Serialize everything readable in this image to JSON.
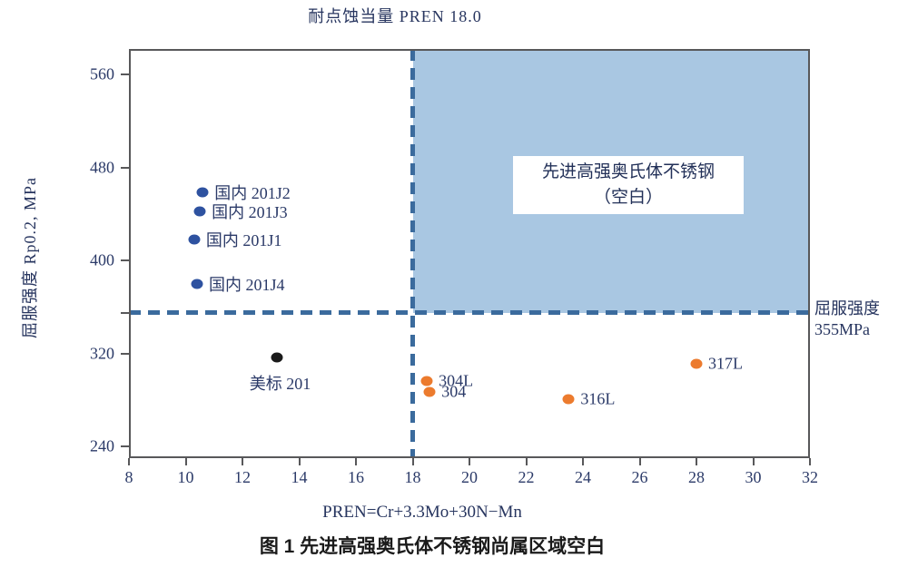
{
  "figure": {
    "top_title": "耐点蚀当量 PREN 18.0",
    "y_axis_title": "屈服强度 Rp0.2, MPa",
    "x_axis_title": "PREN=Cr+3.3Mo+30N−Mn",
    "caption": "图 1 先进高强奥氏体不锈钢尚属区域空白",
    "right_annotation": {
      "line1": "屈服强度",
      "line2": "355MPa"
    },
    "blank_region_label": {
      "line1": "先进高强奥氏体不锈钢",
      "line2": "（空白）"
    }
  },
  "chart_data": {
    "type": "scatter",
    "title": "耐点蚀当量 PREN 18.0",
    "xlabel": "PREN=Cr+3.3Mo+30N−Mn",
    "ylabel": "屈服强度 Rp0.2, MPa",
    "xlim": [
      8,
      32
    ],
    "ylim": [
      230,
      582
    ],
    "x_ticks": [
      8,
      10,
      12,
      14,
      16,
      18,
      20,
      22,
      24,
      26,
      28,
      30,
      32
    ],
    "y_ticks": [
      240,
      320,
      400,
      480,
      560
    ],
    "grid": false,
    "legend_position": "none",
    "reference_lines": {
      "vertical_x_pren": 18.0,
      "horizontal_y_mpa": 355
    },
    "shaded_region": {
      "x_range": [
        18,
        32
      ],
      "y_range": [
        355,
        582
      ],
      "fill": "#a9c7e2",
      "label": "先进高强奥氏体不锈钢（空白）"
    },
    "series": [
      {
        "name": "domestic-201-grades",
        "color": "#2e52a0",
        "points": [
          {
            "label": "国内 201J2",
            "x": 10.6,
            "y": 459
          },
          {
            "label": "国内 201J3",
            "x": 10.5,
            "y": 442
          },
          {
            "label": "国内 201J1",
            "x": 10.3,
            "y": 418
          },
          {
            "label": "国内 201J4",
            "x": 10.4,
            "y": 380
          }
        ]
      },
      {
        "name": "us-standard-201",
        "color": "#1a1a1a",
        "points": [
          {
            "label": "美标 201",
            "x": 13.2,
            "y": 317,
            "label_position": "below"
          }
        ]
      },
      {
        "name": "standard-300-series",
        "color": "#ec7b2e",
        "points": [
          {
            "label": "304L",
            "x": 18.5,
            "y": 296
          },
          {
            "label": "304",
            "x": 18.6,
            "y": 287
          },
          {
            "label": "316L",
            "x": 23.5,
            "y": 281
          },
          {
            "label": "317L",
            "x": 28.0,
            "y": 311
          }
        ]
      }
    ],
    "colors": {
      "dash_line": "#3b6b9d",
      "frame": "#58585a",
      "tick_text": "#2b3a68"
    }
  }
}
